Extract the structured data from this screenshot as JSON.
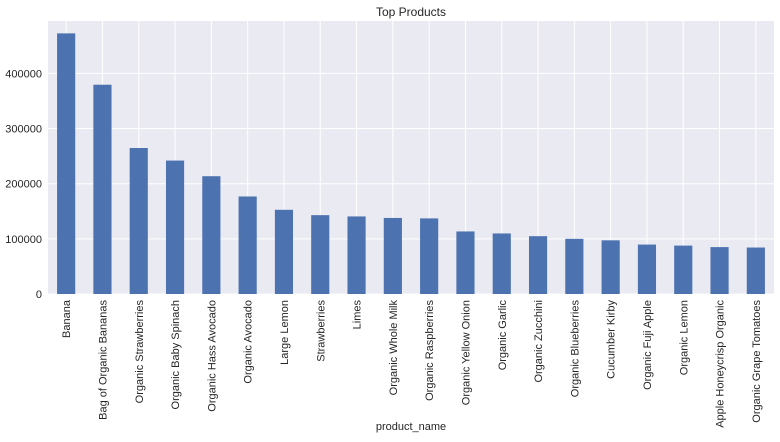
{
  "chart_data": {
    "type": "bar",
    "title": "Top Products",
    "xlabel": "product_name",
    "ylabel": "",
    "ylim": [
      0,
      495000
    ],
    "yticks": [
      0,
      100000,
      200000,
      300000,
      400000
    ],
    "ytick_labels": [
      "0",
      "100000",
      "200000",
      "300000",
      "400000"
    ],
    "grid": true,
    "legend": "none",
    "categories": [
      "Banana",
      "Bag of Organic Bananas",
      "Organic Strawberries",
      "Organic Baby Spinach",
      "Organic Hass Avocado",
      "Organic Avocado",
      "Large Lemon",
      "Strawberries",
      "Limes",
      "Organic Whole Milk",
      "Organic Raspberries",
      "Organic Yellow Onion",
      "Organic Garlic",
      "Organic Zucchini",
      "Organic Blueberries",
      "Cucumber Kirby",
      "Organic Fuji Apple",
      "Organic Lemon",
      "Apple Honeycrisp Organic",
      "Organic Grape Tomatoes"
    ],
    "values": [
      472565,
      379450,
      264683,
      241921,
      213584,
      176815,
      152657,
      142951,
      140627,
      137905,
      137057,
      113426,
      109778,
      104823,
      100060,
      97315,
      89632,
      87746,
      85020,
      84255
    ],
    "colors": {
      "bar": "#4c72b0",
      "plot_background": "#eaeaf2",
      "grid": "#ffffff",
      "text": "#262626"
    }
  }
}
